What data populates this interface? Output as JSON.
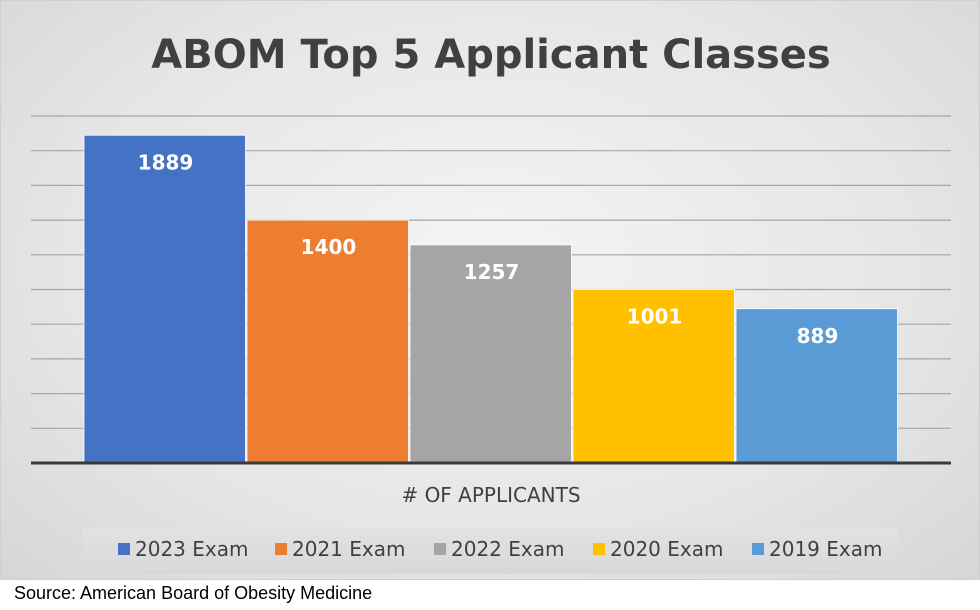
{
  "chart_data": {
    "type": "bar",
    "title": "ABOM Top 5 Applicant Classes",
    "xlabel": "# OF APPLICANTS",
    "ylabel": "",
    "ylim": [
      0,
      2000
    ],
    "grid": true,
    "legend_position": "bottom",
    "series": [
      {
        "name": "2023 Exam",
        "values": [
          1889
        ],
        "color": "#4472c4"
      },
      {
        "name": "2021 Exam",
        "values": [
          1400
        ],
        "color": "#ed7d31"
      },
      {
        "name": "2022 Exam",
        "values": [
          1257
        ],
        "color": "#a5a5a5"
      },
      {
        "name": "2020 Exam",
        "values": [
          1001
        ],
        "color": "#ffc000"
      },
      {
        "name": "2019 Exam",
        "values": [
          889
        ],
        "color": "#5b9bd5"
      }
    ]
  },
  "source": "Source: American Board of Obesity Medicine"
}
